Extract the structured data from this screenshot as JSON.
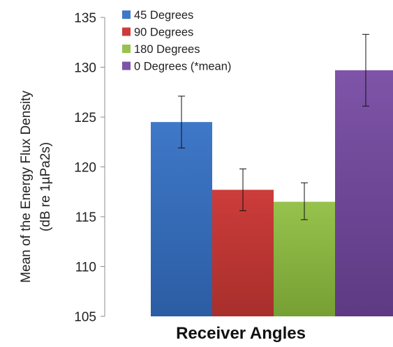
{
  "chart_data": {
    "type": "bar",
    "title": "",
    "xlabel": "Receiver Angles",
    "ylabel_lines": [
      "Mean of the Energy Flux Density",
      "(dB re 1µPa2s)"
    ],
    "ylim": [
      105,
      135
    ],
    "yticks": [
      105,
      110,
      115,
      120,
      125,
      130,
      135
    ],
    "grid": false,
    "legend_position": "top-left",
    "series": [
      {
        "name": "45 Degrees",
        "value": 124.5,
        "error_low": 121.9,
        "error_high": 127.1,
        "color": "#3f78c8",
        "color_dark": "#2b5da3"
      },
      {
        "name": "90 Degrees",
        "value": 117.7,
        "error_low": 115.6,
        "error_high": 119.8,
        "color": "#cc3c3a",
        "color_dark": "#a82f2c"
      },
      {
        "name": "180 Degrees",
        "value": 116.5,
        "error_low": 114.7,
        "error_high": 118.4,
        "color": "#96c24d",
        "color_dark": "#76a033"
      },
      {
        "name": "0 Degrees (*mean)",
        "value": 129.7,
        "error_low": 126.1,
        "error_high": 133.3,
        "color": "#7e54a8",
        "color_dark": "#5d3a83"
      }
    ]
  }
}
